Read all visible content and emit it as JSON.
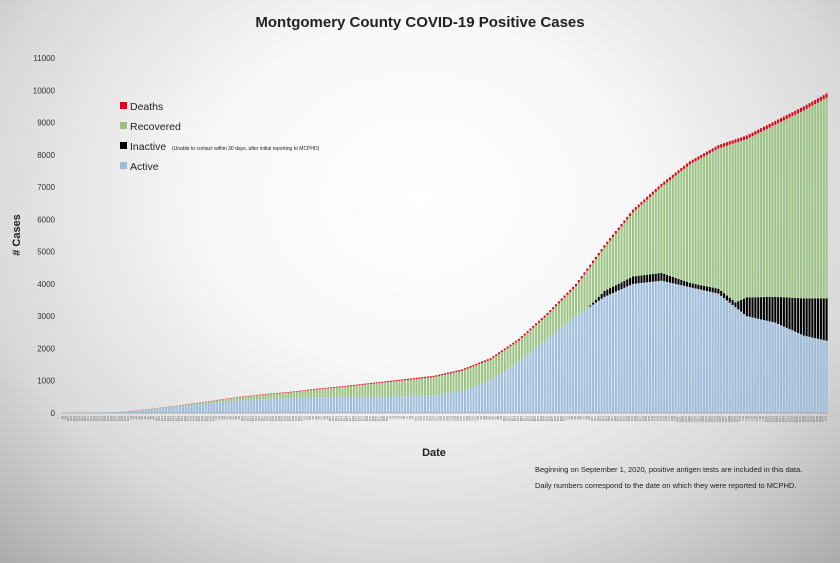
{
  "chart_data": {
    "type": "bar",
    "stacked": true,
    "title": "Montgomery County COVID-19 Positive Cases",
    "xlabel": "Date",
    "ylabel": "# Cases",
    "ylim": [
      0,
      11000
    ],
    "yticks": [
      0,
      1000,
      2000,
      3000,
      4000,
      5000,
      6000,
      7000,
      8000,
      9000,
      10000,
      11000
    ],
    "grid": false,
    "legend_position": "top-left",
    "legend": [
      {
        "name": "Deaths",
        "color": "#e0001b",
        "note": ""
      },
      {
        "name": "Recovered",
        "color": "#9bc483",
        "note": ""
      },
      {
        "name": "Inactive",
        "color": "#000000",
        "note": "(Unable to contact within 30 days, after initial reporting to MCPHD)"
      },
      {
        "name": "Active",
        "color": "#9dbddc",
        "note": ""
      }
    ],
    "notes": [
      "Beginning on September 1, 2020, positive antigen tests are included in this data.",
      "Daily numbers correspond to the date on which they were reported to MCPHD."
    ],
    "x_start_label": "3/8",
    "x_tick_labels": [
      "3/8",
      "3/9",
      "3/10",
      "3/11",
      "3/12",
      "3/13",
      "3/14",
      "3/15",
      "3/16",
      "3/17",
      "3/18",
      "3/19",
      "3/20",
      "3/21",
      "3/22",
      "3/23",
      "3/24",
      "3/25",
      "3/26",
      "3/27",
      "3/28",
      "3/29",
      "3/30",
      "3/31",
      "4/1",
      "4/2",
      "4/3",
      "4/4",
      "4/5",
      "4/6",
      "4/7",
      "4/8",
      "4/9",
      "4/10",
      "4/11",
      "4/12",
      "4/13",
      "4/14",
      "4/15",
      "4/16",
      "4/17",
      "4/18",
      "4/19",
      "4/20",
      "4/21",
      "4/22",
      "4/23",
      "4/24",
      "4/25",
      "4/26",
      "4/27",
      "4/28",
      "4/29",
      "4/30",
      "5/1",
      "5/2",
      "5/3",
      "5/4",
      "5/5",
      "5/6",
      "5/7",
      "5/8",
      "5/9",
      "5/10",
      "5/11",
      "5/12",
      "5/13",
      "5/14",
      "5/15",
      "5/16",
      "5/17",
      "5/18",
      "5/19",
      "5/20",
      "5/21",
      "5/22",
      "5/23",
      "5/24",
      "5/25",
      "5/26",
      "5/27",
      "5/28",
      "5/29",
      "5/30",
      "5/31",
      "6/1",
      "6/2",
      "6/3",
      "6/4",
      "6/5",
      "6/6",
      "6/7",
      "6/8",
      "6/9",
      "6/10",
      "6/11",
      "6/12",
      "6/13",
      "6/14",
      "6/15",
      "6/16",
      "6/17",
      "6/18",
      "6/19",
      "6/20",
      "6/21",
      "6/22",
      "6/23",
      "6/24",
      "6/25",
      "6/26",
      "6/27",
      "6/28",
      "6/29",
      "6/30",
      "7/1",
      "7/2",
      "7/3",
      "7/4",
      "7/5",
      "7/6",
      "7/7",
      "7/8",
      "7/9",
      "7/10",
      "7/11",
      "7/12",
      "7/13",
      "7/14",
      "7/15",
      "7/16",
      "7/17",
      "7/18",
      "7/19",
      "7/20",
      "7/21",
      "7/22",
      "7/23",
      "7/24",
      "7/25",
      "7/26",
      "7/27",
      "7/28",
      "7/29",
      "7/30",
      "7/31",
      "8/1",
      "8/2",
      "8/3",
      "8/4",
      "8/5",
      "8/6",
      "8/7",
      "8/8",
      "8/9",
      "8/10",
      "8/11",
      "8/12",
      "8/13",
      "8/14",
      "8/15",
      "8/16",
      "8/17",
      "8/18",
      "8/19",
      "8/20",
      "8/21",
      "8/22",
      "8/23",
      "8/24",
      "8/25",
      "8/26",
      "8/27",
      "8/28",
      "8/29",
      "8/30",
      "8/31",
      "9/1",
      "9/2",
      "9/3",
      "9/4",
      "9/5",
      "9/6",
      "9/7",
      "9/8",
      "9/9",
      "9/10",
      "9/11",
      "9/12",
      "9/13",
      "9/14",
      "9/15",
      "9/16",
      "9/17",
      "9/18",
      "9/19",
      "9/20",
      "9/21",
      "9/22",
      "9/23",
      "9/24",
      "9/25",
      "9/26",
      "9/27",
      "9/28",
      "9/29",
      "9/30",
      "10/1",
      "10/2",
      "10/3",
      "10/4",
      "10/5",
      "10/6",
      "10/7",
      "10/8",
      "10/9",
      "10/10",
      "10/11",
      "10/12",
      "10/13",
      "10/14",
      "10/15",
      "10/16",
      "10/17",
      "10/18",
      "10/19",
      "10/20",
      "10/21",
      "10/22",
      "10/23",
      "10/24",
      "10/25",
      "10/26",
      "10/27",
      "10/28",
      "10/29",
      "10/30",
      "10/31",
      "11/1",
      "11/2",
      "11/3",
      "11/4",
      "11/5",
      "11/6",
      "11/7",
      "11/8",
      "11/9",
      "11/10",
      "11/11",
      "11/12",
      "11/13",
      "11/14",
      "11/15",
      "11/16",
      "11/17",
      "11/18",
      "11/19",
      "11/20",
      "11/21",
      "11/22",
      "11/23",
      "11/24",
      "11/25",
      "11/26",
      "11/27",
      "11/28",
      "11/29",
      "11/30",
      "12/1"
    ],
    "total_anchors": [
      [
        0,
        0
      ],
      [
        10,
        5
      ],
      [
        20,
        40
      ],
      [
        30,
        120
      ],
      [
        40,
        230
      ],
      [
        50,
        350
      ],
      [
        60,
        480
      ],
      [
        70,
        580
      ],
      [
        80,
        660
      ],
      [
        90,
        760
      ],
      [
        100,
        850
      ],
      [
        110,
        950
      ],
      [
        120,
        1050
      ],
      [
        130,
        1150
      ],
      [
        140,
        1350
      ],
      [
        150,
        1700
      ],
      [
        160,
        2300
      ],
      [
        170,
        3100
      ],
      [
        180,
        4000
      ],
      [
        190,
        5200
      ],
      [
        200,
        6300
      ],
      [
        210,
        7100
      ],
      [
        220,
        7800
      ],
      [
        230,
        8300
      ],
      [
        240,
        8600
      ],
      [
        250,
        9050
      ],
      [
        260,
        9500
      ],
      [
        270,
        10000
      ],
      [
        280,
        10400
      ],
      [
        290,
        10600
      ],
      [
        300,
        10800
      ],
      [
        303,
        10880
      ]
    ],
    "active_anchors": [
      [
        0,
        0
      ],
      [
        10,
        5
      ],
      [
        20,
        40
      ],
      [
        30,
        110
      ],
      [
        40,
        200
      ],
      [
        50,
        290
      ],
      [
        60,
        370
      ],
      [
        70,
        430
      ],
      [
        80,
        470
      ],
      [
        90,
        490
      ],
      [
        100,
        510
      ],
      [
        110,
        500
      ],
      [
        120,
        520
      ],
      [
        130,
        550
      ],
      [
        140,
        680
      ],
      [
        150,
        1000
      ],
      [
        160,
        1600
      ],
      [
        170,
        2300
      ],
      [
        180,
        3000
      ],
      [
        190,
        3600
      ],
      [
        200,
        4000
      ],
      [
        210,
        4100
      ],
      [
        220,
        3900
      ],
      [
        230,
        3700
      ],
      [
        240,
        3000
      ],
      [
        250,
        2800
      ],
      [
        260,
        2400
      ],
      [
        270,
        2200
      ],
      [
        280,
        2050
      ],
      [
        290,
        1700
      ],
      [
        300,
        1600
      ],
      [
        303,
        1580
      ]
    ],
    "inactive_anchors": [
      [
        0,
        0
      ],
      [
        184,
        0
      ],
      [
        190,
        180
      ],
      [
        200,
        230
      ],
      [
        210,
        240
      ],
      [
        220,
        130
      ],
      [
        230,
        150
      ],
      [
        236,
        150
      ],
      [
        240,
        580
      ],
      [
        250,
        800
      ],
      [
        260,
        1150
      ],
      [
        270,
        1350
      ],
      [
        280,
        1560
      ],
      [
        290,
        1720
      ],
      [
        300,
        1830
      ],
      [
        303,
        1840
      ]
    ],
    "deaths_anchors": [
      [
        0,
        0
      ],
      [
        40,
        8
      ],
      [
        80,
        20
      ],
      [
        120,
        35
      ],
      [
        160,
        55
      ],
      [
        200,
        85
      ],
      [
        240,
        110
      ],
      [
        280,
        140
      ],
      [
        303,
        160
      ]
    ]
  }
}
